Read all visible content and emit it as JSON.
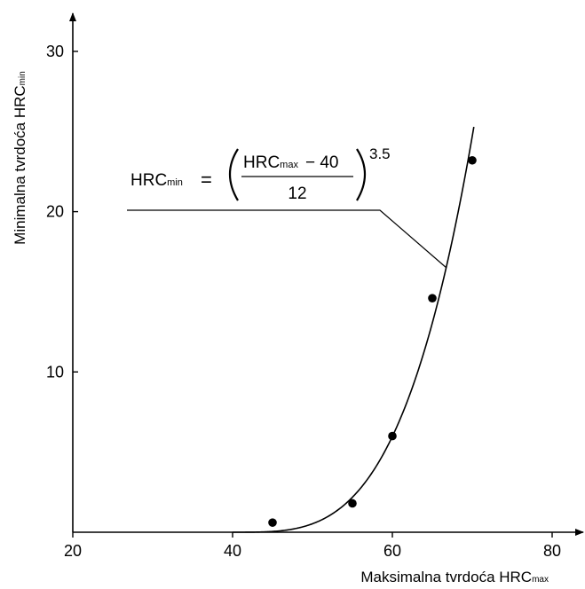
{
  "chart_data": {
    "type": "scatter",
    "title": "",
    "xlabel": "Maksimalna tvrdoća HRCmax",
    "xlabel_main": "Maksimalna tvrdoća HRC",
    "xlabel_sub": "max",
    "ylabel": "Minimalna tvrdoća HRCmin",
    "ylabel_main": "Minimalna tvrdoća HRC",
    "ylabel_sub": "min",
    "xlim": [
      20,
      82
    ],
    "ylim": [
      0,
      31
    ],
    "xticks": [
      20,
      40,
      60,
      80
    ],
    "yticks": [
      10,
      20,
      30
    ],
    "grid": false,
    "points": {
      "x": [
        45,
        55,
        60,
        65,
        70
      ],
      "y": [
        0.6,
        1.8,
        6.0,
        14.6,
        23.2
      ]
    },
    "fit_curve": {
      "formula": "HRCmin = ((HRCmax - 40) / 12)^3.5",
      "x_start": 40,
      "x_end": 70.2
    },
    "annotation": {
      "lhs_main": "HRC",
      "lhs_sub": "min",
      "equals": "=",
      "numerator_main": "HRC",
      "numerator_sub": "max",
      "numerator_rest": "− 40",
      "denominator": "12",
      "exponent": "3.5"
    }
  }
}
